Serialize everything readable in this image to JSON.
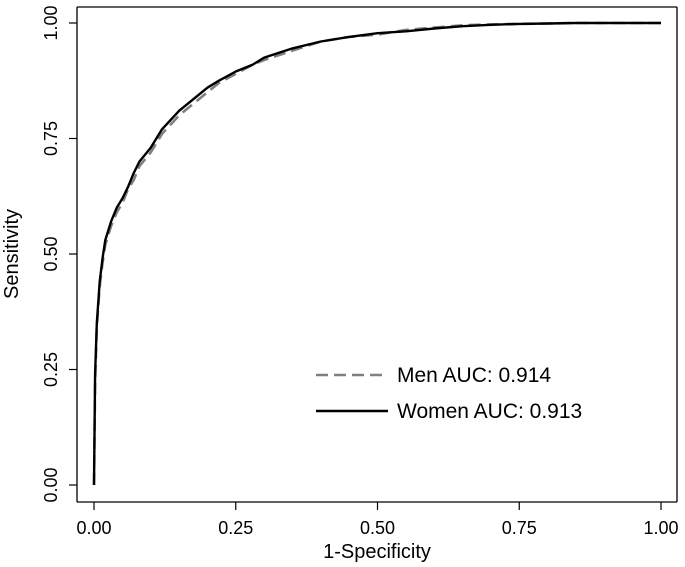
{
  "chart_data": {
    "type": "line",
    "title": "",
    "xlabel": "1-Specificity",
    "ylabel": "Sensitivity",
    "xlim": [
      0,
      1
    ],
    "ylim": [
      0,
      1
    ],
    "x_ticks": [
      "0.00",
      "0.25",
      "0.50",
      "0.75",
      "1.00"
    ],
    "y_ticks": [
      "0.00",
      "0.25",
      "0.50",
      "0.75",
      "1.00"
    ],
    "grid": false,
    "legend_position": "bottom-right",
    "series": [
      {
        "name": "Men AUC: 0.914",
        "color": "#808080",
        "style": "dashed",
        "x": [
          0,
          0.002,
          0.005,
          0.01,
          0.015,
          0.02,
          0.03,
          0.04,
          0.05,
          0.06,
          0.07,
          0.08,
          0.1,
          0.12,
          0.15,
          0.18,
          0.2,
          0.22,
          0.25,
          0.28,
          0.3,
          0.35,
          0.4,
          0.45,
          0.5,
          0.55,
          0.6,
          0.65,
          0.7,
          0.75,
          0.8,
          0.85,
          0.9,
          0.95,
          1.0
        ],
        "y": [
          0,
          0.22,
          0.34,
          0.43,
          0.48,
          0.52,
          0.56,
          0.59,
          0.61,
          0.64,
          0.66,
          0.69,
          0.72,
          0.76,
          0.8,
          0.83,
          0.85,
          0.87,
          0.89,
          0.91,
          0.92,
          0.94,
          0.96,
          0.97,
          0.975,
          0.985,
          0.99,
          0.995,
          0.997,
          0.998,
          0.999,
          1.0,
          1.0,
          1.0,
          1.0
        ]
      },
      {
        "name": "Women AUC: 0.913",
        "color": "#000000",
        "style": "solid",
        "x": [
          0,
          0.002,
          0.005,
          0.01,
          0.015,
          0.02,
          0.03,
          0.04,
          0.05,
          0.06,
          0.07,
          0.08,
          0.1,
          0.12,
          0.15,
          0.18,
          0.2,
          0.22,
          0.25,
          0.28,
          0.3,
          0.35,
          0.4,
          0.45,
          0.5,
          0.55,
          0.6,
          0.65,
          0.7,
          0.75,
          0.8,
          0.85,
          0.9,
          0.95,
          1.0
        ],
        "y": [
          0,
          0.24,
          0.35,
          0.44,
          0.49,
          0.53,
          0.57,
          0.6,
          0.62,
          0.645,
          0.675,
          0.7,
          0.73,
          0.77,
          0.81,
          0.84,
          0.86,
          0.875,
          0.895,
          0.91,
          0.925,
          0.945,
          0.96,
          0.97,
          0.978,
          0.982,
          0.988,
          0.993,
          0.996,
          0.998,
          0.999,
          1.0,
          1.0,
          1.0,
          1.0
        ]
      }
    ]
  }
}
